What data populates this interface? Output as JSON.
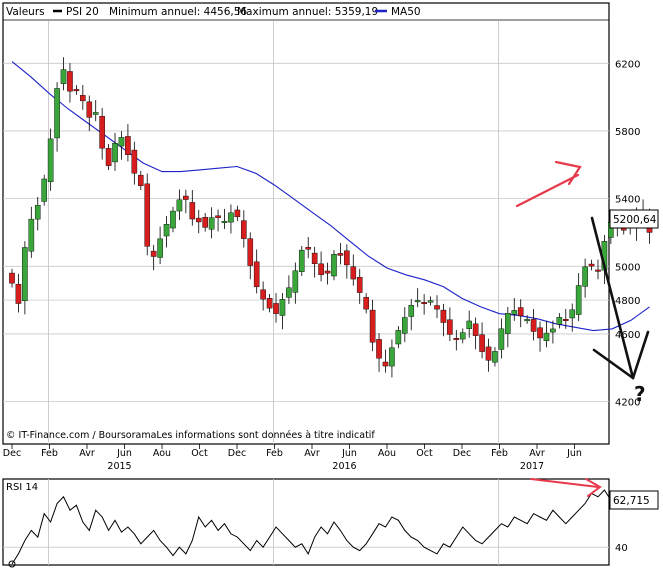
{
  "header": {
    "valeurs_label": "Valeurs",
    "series_label": "PSI 20",
    "min_label": "Minimum annuel: 4456,56",
    "max_label": "Maximum annuel: 5359,19",
    "ma_label": "MA50"
  },
  "colors": {
    "frame": "#000000",
    "grid": "#c8c8c8",
    "up": "#3aa53a",
    "down": "#d61e1e",
    "ma": "#1d22c9",
    "annotation_red": "#e8394a",
    "annotation_black": "#111111",
    "highlight_box": "#ffffff"
  },
  "footer": {
    "source": "© IT-Finance.com / BoursoramaLes informations sont données à titre indicatif"
  },
  "annotations": {
    "question_mark": "?"
  },
  "chart_data": [
    {
      "type": "candlestick",
      "title": "PSI 20",
      "ylim": [
        4050,
        6450
      ],
      "yticks": [
        4200,
        4600,
        4800,
        5000,
        5400,
        5800,
        6200
      ],
      "ytick_labels": [
        "4200",
        "4600",
        "4800",
        "5000",
        "5400",
        "5800",
        "6200"
      ],
      "last_value_label": "5200,64",
      "last_value": 5200.64,
      "month_ticks": [
        "Dec",
        "Feb",
        "Avr",
        "Jun",
        "Aou",
        "Oct",
        "Dec",
        "Feb",
        "Avr",
        "Jun",
        "Aou",
        "Oct",
        "Dec",
        "Feb",
        "Avr",
        "Jun"
      ],
      "year_labels": [
        {
          "label": "2015",
          "month_index": 3
        },
        {
          "label": "2016",
          "month_index": 9
        },
        {
          "label": "2017",
          "month_index": 14
        }
      ],
      "year_separators": [
        1,
        7,
        13
      ],
      "grid": true,
      "series": [
        {
          "name": "PSI 20",
          "kind": "ohlc_weekly",
          "count": 100
        },
        {
          "name": "MA50",
          "kind": "line"
        }
      ],
      "close_path": [
        [
          0,
          4900
        ],
        [
          0.2,
          4760
        ],
        [
          0.4,
          5250
        ],
        [
          0.6,
          5300
        ],
        [
          0.8,
          5440
        ],
        [
          1.0,
          5700
        ],
        [
          1.2,
          6050
        ],
        [
          1.4,
          6180
        ],
        [
          1.6,
          5980
        ],
        [
          1.8,
          6080
        ],
        [
          2.0,
          5850
        ],
        [
          2.2,
          5950
        ],
        [
          2.4,
          5700
        ],
        [
          2.6,
          5580
        ],
        [
          2.8,
          5780
        ],
        [
          3.0,
          5750
        ],
        [
          3.2,
          5550
        ],
        [
          3.4,
          5550
        ],
        [
          3.6,
          5120
        ],
        [
          3.8,
          5050
        ],
        [
          4.0,
          5200
        ],
        [
          4.2,
          5280
        ],
        [
          4.4,
          5380
        ],
        [
          4.6,
          5420
        ],
        [
          4.8,
          5280
        ],
        [
          5.0,
          5260
        ],
        [
          5.2,
          5220
        ],
        [
          5.4,
          5330
        ],
        [
          5.6,
          5240
        ],
        [
          5.8,
          5320
        ],
        [
          6.0,
          5300
        ],
        [
          6.2,
          5150
        ],
        [
          6.4,
          4960
        ],
        [
          6.6,
          4830
        ],
        [
          6.8,
          4780
        ],
        [
          7.0,
          4700
        ],
        [
          7.2,
          4800
        ],
        [
          7.4,
          4880
        ],
        [
          7.6,
          5000
        ],
        [
          7.8,
          5150
        ],
        [
          8.0,
          5050
        ],
        [
          8.2,
          4950
        ],
        [
          8.4,
          4950
        ],
        [
          8.6,
          5080
        ],
        [
          8.8,
          5060
        ],
        [
          9.0,
          4980
        ],
        [
          9.2,
          4870
        ],
        [
          9.4,
          4800
        ],
        [
          9.6,
          4560
        ],
        [
          9.8,
          4450
        ],
        [
          10.0,
          4400
        ],
        [
          10.2,
          4580
        ],
        [
          10.4,
          4660
        ],
        [
          10.6,
          4760
        ],
        [
          10.8,
          4800
        ],
        [
          11.0,
          4780
        ],
        [
          11.2,
          4800
        ],
        [
          11.4,
          4720
        ],
        [
          11.6,
          4620
        ],
        [
          11.8,
          4560
        ],
        [
          12.0,
          4600
        ],
        [
          12.2,
          4680
        ],
        [
          12.4,
          4570
        ],
        [
          12.6,
          4460
        ],
        [
          12.8,
          4430
        ],
        [
          13.0,
          4600
        ],
        [
          13.2,
          4720
        ],
        [
          13.4,
          4740
        ],
        [
          13.6,
          4700
        ],
        [
          13.8,
          4680
        ],
        [
          14.0,
          4560
        ],
        [
          14.2,
          4600
        ],
        [
          14.4,
          4620
        ],
        [
          14.6,
          4700
        ],
        [
          14.8,
          4680
        ],
        [
          15.0,
          4770
        ],
        [
          15.2,
          4980
        ],
        [
          15.4,
          5020
        ],
        [
          15.6,
          4950
        ],
        [
          15.8,
          5150
        ],
        [
          16.0,
          5280
        ],
        [
          16.2,
          5230
        ],
        [
          16.4,
          5200
        ],
        [
          16.6,
          5300
        ],
        [
          16.8,
          5340
        ],
        [
          17.0,
          5200
        ]
      ],
      "ma_path": [
        [
          0,
          6210
        ],
        [
          0.5,
          6120
        ],
        [
          1.0,
          6020
        ],
        [
          1.5,
          5930
        ],
        [
          2.0,
          5850
        ],
        [
          2.5,
          5770
        ],
        [
          3.0,
          5690
        ],
        [
          3.5,
          5610
        ],
        [
          4.0,
          5560
        ],
        [
          4.5,
          5560
        ],
        [
          5.0,
          5570
        ],
        [
          5.5,
          5580
        ],
        [
          6.0,
          5590
        ],
        [
          6.5,
          5550
        ],
        [
          7.0,
          5480
        ],
        [
          7.5,
          5400
        ],
        [
          8.0,
          5320
        ],
        [
          8.5,
          5240
        ],
        [
          9.0,
          5150
        ],
        [
          9.5,
          5060
        ],
        [
          10.0,
          4990
        ],
        [
          10.5,
          4950
        ],
        [
          11.0,
          4920
        ],
        [
          11.5,
          4880
        ],
        [
          12.0,
          4810
        ],
        [
          12.5,
          4760
        ],
        [
          13.0,
          4720
        ],
        [
          13.5,
          4710
        ],
        [
          14.0,
          4690
        ],
        [
          14.5,
          4660
        ],
        [
          15.0,
          4640
        ],
        [
          15.5,
          4620
        ],
        [
          16.0,
          4630
        ],
        [
          16.5,
          4680
        ],
        [
          17.0,
          4760
        ]
      ]
    },
    {
      "type": "line",
      "title": "RSI 14",
      "ylim": [
        30,
        80
      ],
      "yticks": [
        40
      ],
      "ytick_labels": [
        "40"
      ],
      "last_value_label": "62,715",
      "last_value": 62.715,
      "grid": true,
      "series": [
        {
          "name": "RSI 14",
          "values": [
            30,
            36,
            44,
            50,
            46,
            60,
            55,
            66,
            70,
            62,
            65,
            55,
            50,
            62,
            58,
            50,
            56,
            49,
            52,
            48,
            42,
            46,
            50,
            44,
            40,
            35,
            40,
            36,
            44,
            58,
            52,
            56,
            50,
            54,
            48,
            46,
            42,
            38,
            44,
            40,
            46,
            52,
            48,
            44,
            40,
            42,
            36,
            46,
            52,
            48,
            55,
            50,
            44,
            40,
            38,
            42,
            48,
            54,
            52,
            58,
            56,
            50,
            46,
            44,
            40,
            38,
            36,
            42,
            40,
            46,
            52,
            48,
            44,
            42,
            46,
            50,
            54,
            52,
            58,
            56,
            54,
            60,
            58,
            56,
            62,
            58,
            54,
            58,
            62,
            66,
            72,
            70,
            74,
            68,
            72,
            66,
            70,
            64,
            68,
            62.715
          ]
        }
      ]
    }
  ]
}
